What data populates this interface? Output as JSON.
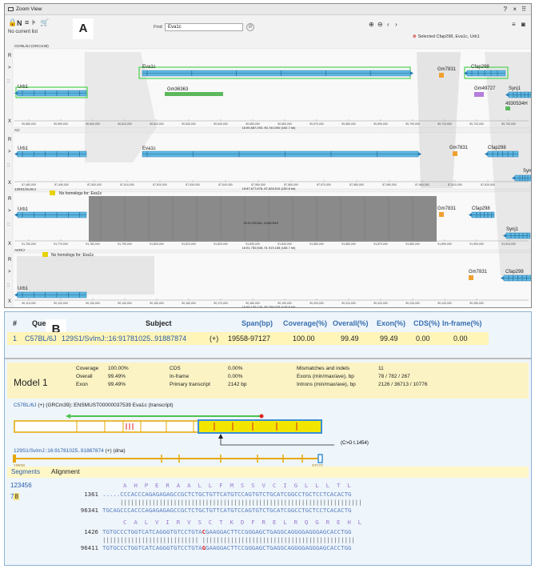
{
  "panel_a": {
    "letter": "A",
    "window_title": "Zoom View",
    "subtitle": "No current list",
    "find_label": "Find",
    "find_value": "Eva1c",
    "selected_text": "Selected Cfap298, Eva1c, Urb1",
    "side_marks": {
      "r": "R",
      "gt": ">",
      "x": "X",
      "dots": "::"
    },
    "tracks": [
      {
        "strain": "C57BL/6J (GRCm39)",
        "genes": [
          "Eva1c",
          "Urb1",
          "Gm36363",
          "Gm7831",
          "Cfap298",
          "Gm49727",
          "Synj1",
          "4930534H"
        ],
        "ticks": [
          "90,580,000",
          "90,590,000",
          "90,600,000",
          "90,610,000",
          "90,620,000",
          "90,630,000",
          "90,640,000",
          "90,650,000",
          "90,660,000",
          "90,670,000",
          "90,680,000",
          "90,690,000",
          "90,700,000",
          "90,710,000",
          "90,720,000",
          "90,730,000"
        ],
        "range": "16:90,587,293..90,740,000 (152.7 kb)"
      },
      {
        "strain": "A/J",
        "genes": [
          "Urb1",
          "Eva1c",
          "Gm7831",
          "Cfap298",
          "Syn"
        ],
        "ticks": [
          "87,480,000",
          "87,490,000",
          "87,500,000",
          "87,510,000",
          "87,520,000",
          "87,530,000",
          "87,540,000",
          "87,550,000",
          "87,560,000",
          "87,570,000",
          "87,580,000",
          "87,590,000",
          "87,600,000",
          "87,610,000",
          "87,620,000"
        ],
        "range": "16:87,677,678..87,828,515 (150.8 kb)"
      },
      {
        "strain": "129S1/SvImJ",
        "nohomolog": "No homologs for: Eva1c",
        "genes": [
          "Urb1",
          "Gm7831",
          "Cfap298",
          "Synj1"
        ],
        "ticks": [
          "91,760,000",
          "91,770,000",
          "91,780,000",
          "91,790,000",
          "91,800,000",
          "91,810,000",
          "91,820,000",
          "91,830,000",
          "91,840,000",
          "91,850,000",
          "91,860,000",
          "91,870,000",
          "91,880,000",
          "91,890,000",
          "91,900,000",
          "91,910,000"
        ],
        "range": "16:91,750,508..91,919,168 (168.7 kb)",
        "overlay": "16:91781384..91887848"
      },
      {
        "strain": "AKR/J",
        "nohomolog": "No homologs for: Eva1c",
        "genes": [
          "Urb1",
          "Gm7831",
          "Cfap298"
        ],
        "ticks": [
          "90,110,000",
          "90,120,000",
          "90,130,000",
          "90,140,000",
          "90,150,000",
          "90,160,000",
          "90,170,000",
          "90,180,000",
          "90,190,000",
          "90,200,000",
          "90,210,000",
          "90,220,000",
          "90,230,000",
          "90,240,000",
          "90,250,000"
        ],
        "range": "16:90,109,126..90,258,028 (148.9 kb)"
      }
    ]
  },
  "panel_b": {
    "letter": "B",
    "headers": [
      "#",
      "Query",
      "Subject",
      "Span(bp)",
      "Coverage(%)",
      "Overall(%)",
      "Exon(%)",
      "CDS(%)",
      "In-frame(%)"
    ],
    "row": {
      "num": "1",
      "query": "C57BL/6J",
      "subject": "129S1/SvImJ::16:91781025..91887874",
      "strand": "(+)",
      "span": "19558-97127",
      "coverage": "100.00",
      "overall": "99.49",
      "exon": "99.49",
      "cds": "0.00",
      "inframe": "0.00"
    },
    "model": {
      "title": "Model 1",
      "col1": [
        [
          "Coverage",
          "100.00%"
        ],
        [
          "Overall",
          "99.49%"
        ],
        [
          "Exon",
          "99.49%"
        ]
      ],
      "col2": [
        [
          "CDS",
          "0.00%"
        ],
        [
          "In-frame",
          "0.00%"
        ],
        [
          "Primary transcript",
          "2142 bp"
        ]
      ],
      "col3": [
        [
          "Mismatches and indels",
          "11"
        ],
        [
          "Exons (min/max/ave), bp",
          "78 / 782 / 267"
        ],
        [
          "Introns (min/max/ave), bp",
          "2126 / 36713 / 10776"
        ]
      ]
    },
    "transcript_label_a": "C57BL/6J",
    "transcript_label_b": " (+) (GRCm39)::ENSMUST00000037539 Eva1c (transcript)",
    "mutation_callout": "(C>G t.1454)",
    "dna_label_a": "129S1/SvImJ::16:91781025..91887874",
    "dna_label_b": " (+) (dna)",
    "dna_start": "19558",
    "dna_end": "97127",
    "tabs": {
      "segments": "Segments",
      "alignment": "Alignment"
    },
    "segment_numbers_row1": "123456",
    "segment_numbers_row2a": "7",
    "segment_numbers_row2b": "8",
    "alignment": {
      "block1": {
        "aa": "A  H  P  E  R  A  A  L  L  F  M  S  S  V  C  I  G  L  L  L  T  L",
        "q_num": "1361",
        "q_seq": ".....CCCACCCAGAGAGAGCCGCTCTGCTGTTCATGTCCAGTGTCTGCATCGGCCTGCTCCTCACACTG",
        "bars": "||||||||||||||||||||||||||||||||||||||||||||||||||||||||||||||||||||",
        "s_num": "96341",
        "s_seq": "TGCAGCCCACCCAGAGAGAGCCGCTCTGCTGTTCATGTCCAGTGTCTGCATCGGCCTGCTCCTCACACTG"
      },
      "block2": {
        "aa": "C  A  L  V  I  R  V  S  C  T  K  D  F  R  E  L  R  Q  G  R  E  H  L",
        "q_num": "1426",
        "q_seq_a": "TGTGCCCTGGTCATCAGGGTGTCCTGTA",
        "q_mut": "C",
        "q_seq_b": "GAAGGACTTCCGGGAGCTGAGGCAGGGGAGGGAGCACCTGG",
        "bars": "||||||||||||||||||||||||||| |||||||||||||||||||||||||||||||||||||||||||",
        "s_num": "96411",
        "s_seq_a": "TGTGCCCTGGTCATCAGGGTGTCCTGTA",
        "s_mut": "G",
        "s_seq_b": "GAAGGACTTCCGGGAGCTGAGGCAGGGGAGGGAGCACCTGG"
      }
    }
  }
}
